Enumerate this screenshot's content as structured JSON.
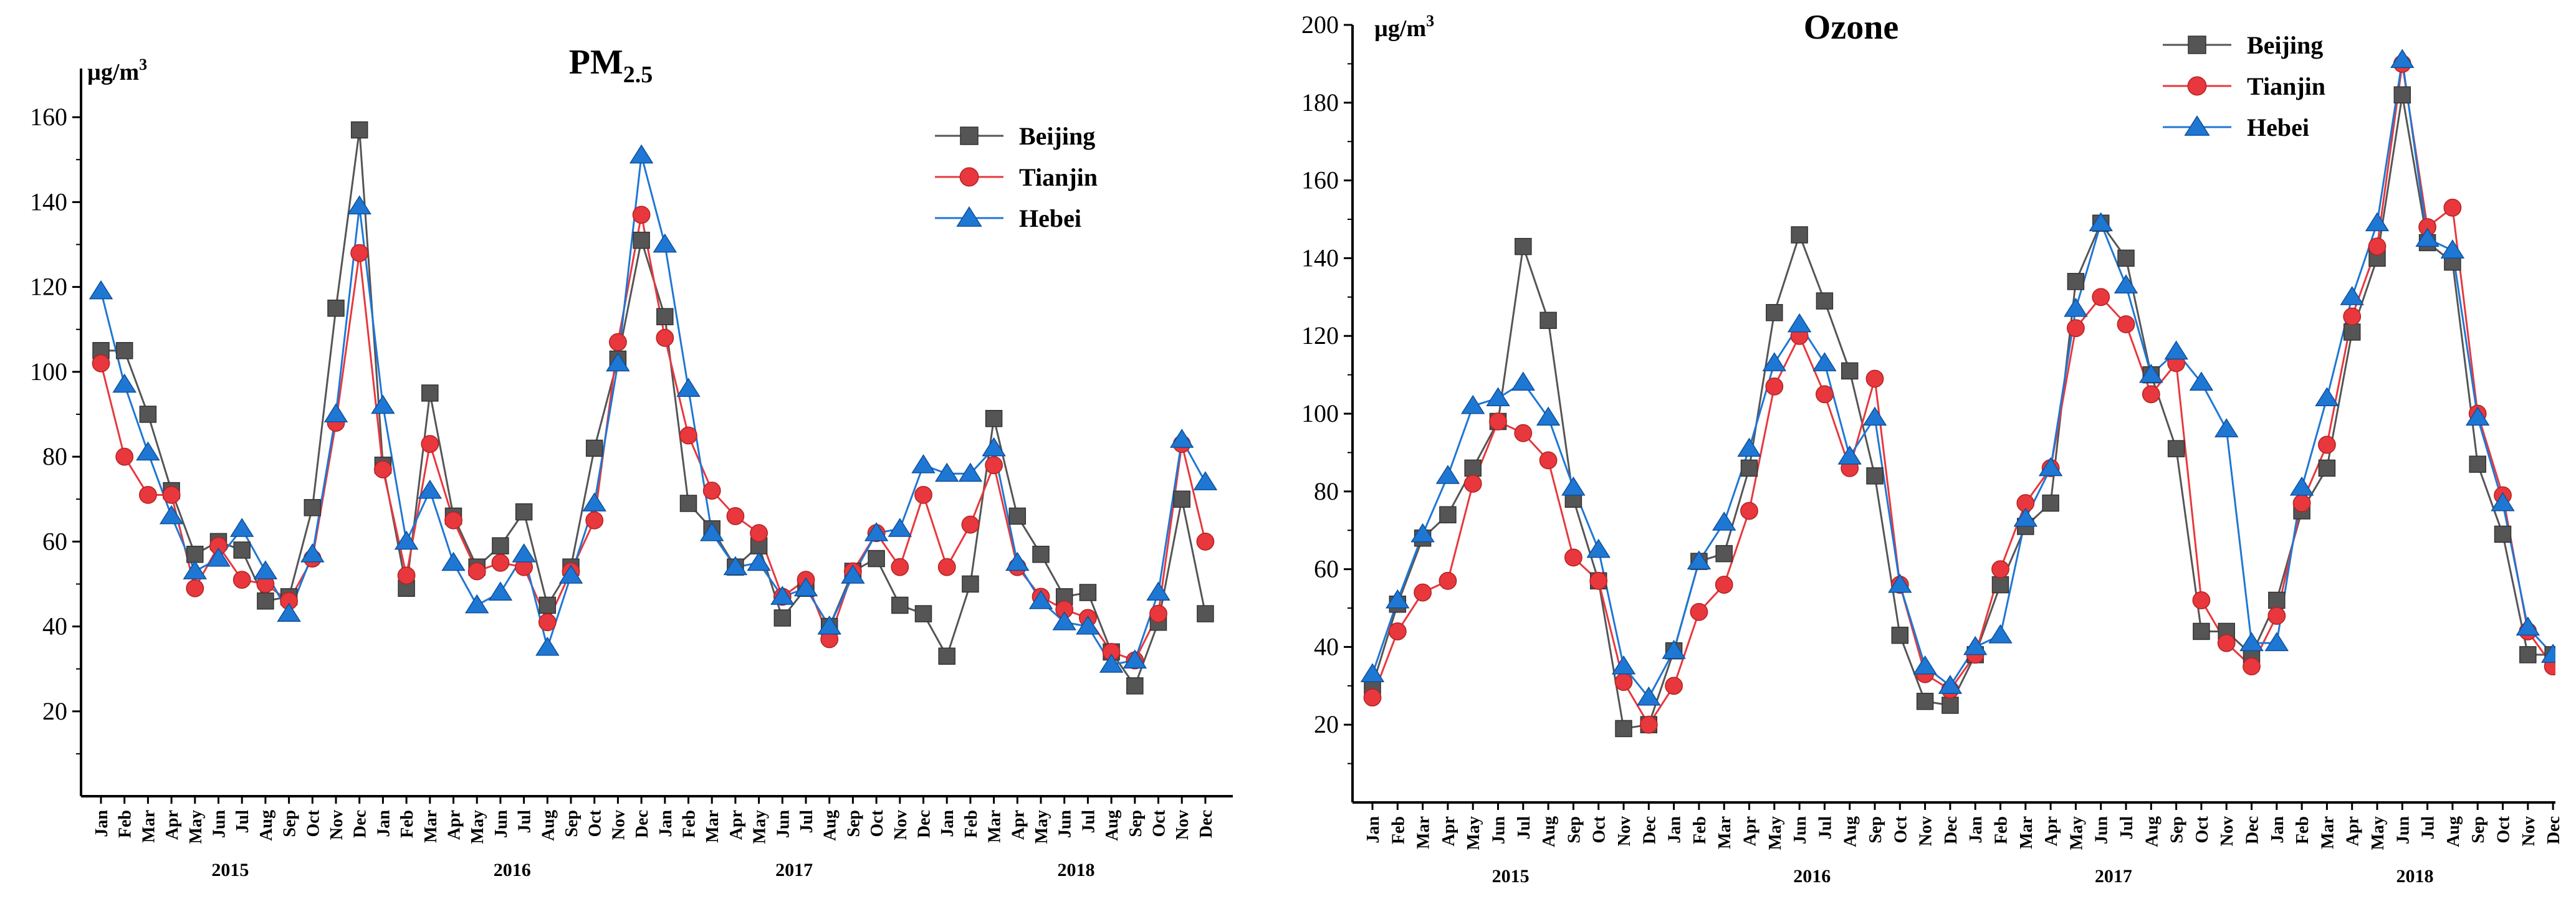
{
  "chart_data": [
    {
      "type": "line",
      "title": "PM",
      "title_sub": "2.5",
      "unit_label": "µg/m",
      "unit_sup": "3",
      "ylim": [
        0,
        170
      ],
      "yticks": [
        20,
        40,
        60,
        80,
        100,
        120,
        140,
        160
      ],
      "categories": [
        "Jan",
        "Feb",
        "Mar",
        "Apr",
        "May",
        "Jun",
        "Jul",
        "Aug",
        "Sep",
        "Oct",
        "Nov",
        "Dec",
        "Jan",
        "Feb",
        "Mar",
        "Apr",
        "May",
        "Jun",
        "Jul",
        "Aug",
        "Sep",
        "Oct",
        "Nov",
        "Dec",
        "Jan",
        "Feb",
        "Mar",
        "Apr",
        "May",
        "Jun",
        "Jul",
        "Aug",
        "Sep",
        "Oct",
        "Nov",
        "Dec",
        "Jan",
        "Feb",
        "Mar",
        "Apr",
        "May",
        "Jun",
        "Jul",
        "Aug",
        "Sep",
        "Oct",
        "Nov",
        "Dec"
      ],
      "years": [
        "2015",
        "2016",
        "2017",
        "2018"
      ],
      "legend_position": "top-right",
      "grid": false,
      "series": [
        {
          "name": "Beijing",
          "color": "#555555",
          "marker": "square",
          "values": [
            105,
            105,
            90,
            72,
            57,
            60,
            58,
            46,
            47,
            68,
            115,
            157,
            78,
            49,
            95,
            66,
            54,
            59,
            67,
            45,
            54,
            82,
            103,
            131,
            113,
            69,
            63,
            54,
            59,
            42,
            49,
            40,
            53,
            56,
            45,
            43,
            33,
            50,
            89,
            66,
            57,
            47,
            48,
            34,
            26,
            41,
            70,
            43
          ]
        },
        {
          "name": "Tianjin",
          "color": "#e8383d",
          "marker": "circle",
          "values": [
            102,
            80,
            71,
            71,
            49,
            59,
            51,
            50,
            46,
            56,
            88,
            128,
            77,
            52,
            83,
            65,
            53,
            55,
            54,
            41,
            53,
            65,
            107,
            137,
            108,
            85,
            72,
            66,
            62,
            47,
            51,
            37,
            53,
            62,
            54,
            71,
            54,
            64,
            78,
            54,
            47,
            44,
            42,
            34,
            32,
            43,
            83,
            60
          ]
        },
        {
          "name": "Hebei",
          "color": "#1f77d4",
          "marker": "triangle",
          "values": [
            119,
            97,
            81,
            66,
            53,
            56,
            63,
            53,
            43,
            57,
            90,
            139,
            92,
            60,
            72,
            55,
            45,
            48,
            57,
            35,
            52,
            69,
            102,
            151,
            130,
            96,
            62,
            54,
            55,
            47,
            49,
            40,
            52,
            62,
            63,
            78,
            76,
            76,
            82,
            55,
            46,
            41,
            40,
            31,
            32,
            48,
            84,
            74
          ]
        }
      ]
    },
    {
      "type": "line",
      "title": "Ozone",
      "unit_label": "µg/m",
      "unit_sup": "3",
      "ylim": [
        0,
        200
      ],
      "yticks": [
        20,
        40,
        60,
        80,
        100,
        120,
        140,
        160,
        180,
        200
      ],
      "categories": [
        "Jan",
        "Feb",
        "Mar",
        "Apr",
        "May",
        "Jun",
        "Jul",
        "Aug",
        "Sep",
        "Oct",
        "Nov",
        "Dec",
        "Jan",
        "Feb",
        "Mar",
        "Apr",
        "May",
        "Jun",
        "Jul",
        "Aug",
        "Sep",
        "Oct",
        "Nov",
        "Dec",
        "Jan",
        "Feb",
        "Mar",
        "Apr",
        "May",
        "Jun",
        "Jul",
        "Aug",
        "Sep",
        "Oct",
        "Nov",
        "Dec",
        "Jan",
        "Feb",
        "Mar",
        "Apr",
        "May",
        "Jun",
        "Jul",
        "Aug",
        "Sep",
        "Oct",
        "Nov",
        "Dec"
      ],
      "years": [
        "2015",
        "2016",
        "2017",
        "2018"
      ],
      "legend_position": "top-right",
      "grid": false,
      "series": [
        {
          "name": "Beijing",
          "color": "#555555",
          "marker": "square",
          "values": [
            30,
            51,
            68,
            74,
            86,
            98,
            143,
            124,
            78,
            57,
            19,
            20,
            39,
            62,
            64,
            86,
            126,
            146,
            129,
            111,
            84,
            43,
            26,
            25,
            38,
            56,
            71,
            77,
            134,
            149,
            140,
            110,
            91,
            44,
            44,
            38,
            52,
            75,
            86,
            121,
            140,
            182,
            144,
            139,
            87,
            69,
            38,
            38
          ]
        },
        {
          "name": "Tianjin",
          "color": "#e8383d",
          "marker": "circle",
          "values": [
            27,
            44,
            54,
            57,
            82,
            98,
            95,
            88,
            63,
            57,
            31,
            20,
            30,
            49,
            56,
            75,
            107,
            120,
            105,
            86,
            109,
            56,
            33,
            29,
            38,
            60,
            77,
            86,
            122,
            130,
            123,
            105,
            113,
            52,
            41,
            35,
            48,
            77,
            92,
            125,
            143,
            190,
            148,
            153,
            100,
            79,
            44,
            35
          ]
        },
        {
          "name": "Hebei",
          "color": "#1f77d4",
          "marker": "triangle",
          "values": [
            33,
            52,
            69,
            84,
            102,
            104,
            108,
            99,
            81,
            65,
            35,
            27,
            39,
            62,
            72,
            91,
            113,
            123,
            113,
            89,
            99,
            56,
            35,
            30,
            40,
            43,
            73,
            86,
            127,
            149,
            133,
            110,
            116,
            108,
            96,
            41,
            41,
            81,
            104,
            130,
            149,
            191,
            145,
            142,
            99,
            77,
            45,
            38
          ]
        }
      ]
    }
  ]
}
